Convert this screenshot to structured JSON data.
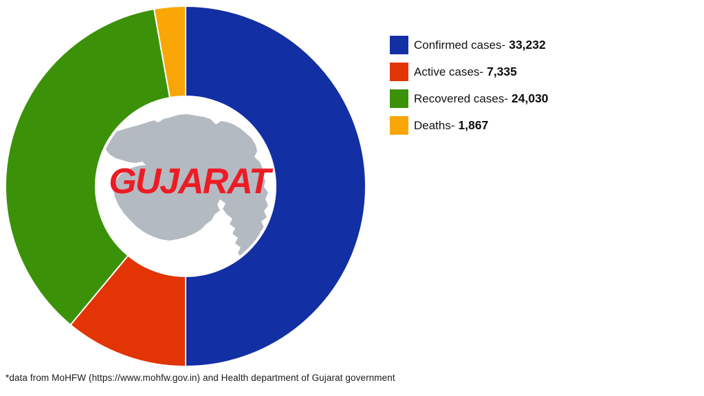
{
  "chart_data": {
    "type": "pie",
    "subtype": "donut",
    "title": "",
    "series": [
      {
        "label": "Confirmed cases-",
        "value": 33232,
        "value_display": "33,232",
        "color": "#122fa3"
      },
      {
        "label": "Active cases-",
        "value": 7335,
        "value_display": "7,335",
        "color": "#e23405"
      },
      {
        "label": "Recovered cases-",
        "value": 24030,
        "value_display": "24,030",
        "color": "#3b9208"
      },
      {
        "label": "Deaths-",
        "value": 1867,
        "value_display": "1,867",
        "color": "#f9a606"
      }
    ],
    "start_angle_deg": 0,
    "direction": "clockwise",
    "inner_radius_ratio": 0.5,
    "slice_gap_color": "#ffffff",
    "legend_position": "right",
    "center_label": "GUJARAT",
    "center_label_color": "#ec1c24",
    "map_color": "#b4bac2",
    "background": "#ffffff"
  },
  "footer": {
    "text": "*data from MoHFW (https://www.mohfw.gov.in) and Health department of Gujarat government"
  }
}
